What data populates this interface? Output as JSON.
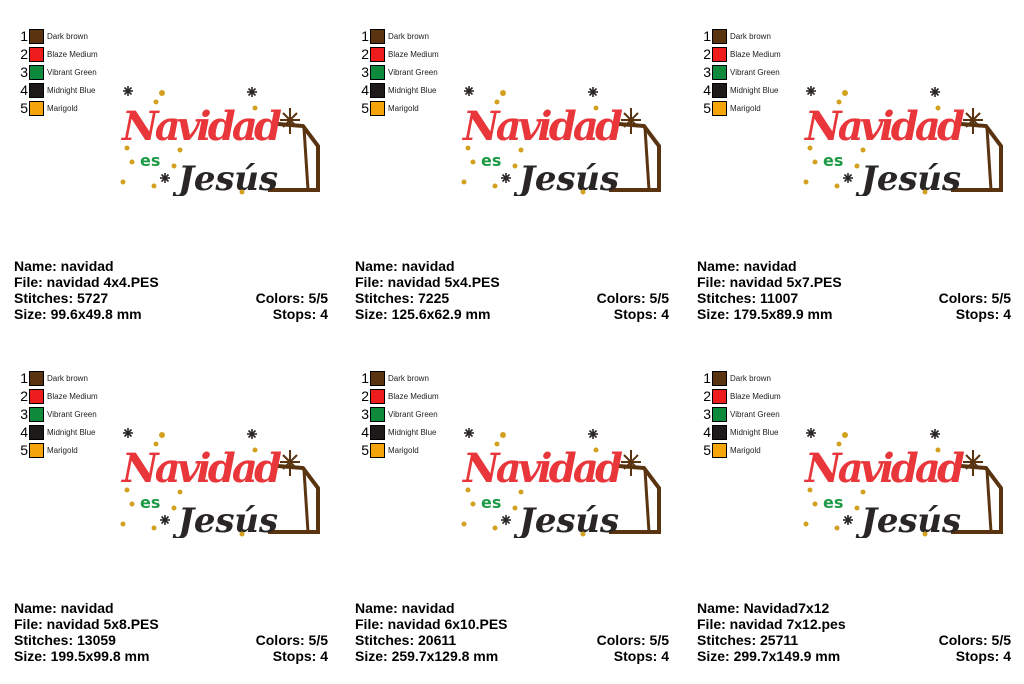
{
  "thread_colors": [
    {
      "num": "1",
      "name": "Dark brown",
      "color": "#5a3410"
    },
    {
      "num": "2",
      "name": "Blaze Medium",
      "color": "#ee1c1c"
    },
    {
      "num": "3",
      "name": "Vibrant Green",
      "color": "#0e8a3c"
    },
    {
      "num": "4",
      "name": "Midnight Blue",
      "color": "#1e1a1a"
    },
    {
      "num": "5",
      "name": "Marigold",
      "color": "#f5a40a"
    }
  ],
  "design_text": {
    "line1": "Navidad",
    "line2": "es",
    "line3": "Jesús"
  },
  "cards": [
    {
      "name": "Name: navidad",
      "file": "File: navidad 4x4.PES",
      "stitches": "Stitches: 5727",
      "colors": "Colors: 5/5",
      "size": "Size: 99.6x49.8 mm",
      "stops": "Stops: 4"
    },
    {
      "name": "Name: navidad",
      "file": "File: navidad 5x4.PES",
      "stitches": "Stitches: 7225",
      "colors": "Colors: 5/5",
      "size": "Size: 125.6x62.9 mm",
      "stops": "Stops: 4"
    },
    {
      "name": "Name: navidad",
      "file": "File: navidad 5x7.PES",
      "stitches": "Stitches: 11007",
      "colors": "Colors: 5/5",
      "size": "Size: 179.5x89.9 mm",
      "stops": "Stops: 4"
    },
    {
      "name": "Name: navidad",
      "file": "File: navidad 5x8.PES",
      "stitches": "Stitches: 13059",
      "colors": "Colors: 5/5",
      "size": "Size: 199.5x99.8 mm",
      "stops": "Stops: 4"
    },
    {
      "name": "Name: navidad",
      "file": "File: navidad 6x10.PES",
      "stitches": "Stitches: 20611",
      "colors": "Colors: 5/5",
      "size": "Size: 259.7x129.8 mm",
      "stops": "Stops: 4"
    },
    {
      "name": "Name: Navidad7x12",
      "file": "File: navidad 7x12.pes",
      "stitches": "Stitches: 25711",
      "colors": "Colors: 5/5",
      "size": "Size: 299.7x149.9 mm",
      "stops": "Stops: 4"
    }
  ]
}
